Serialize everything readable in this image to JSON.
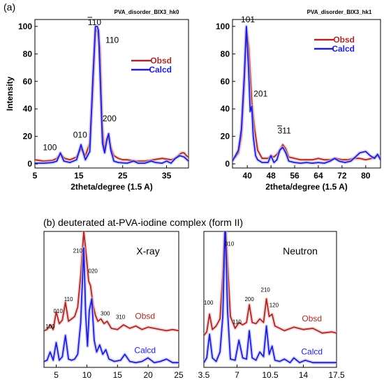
{
  "section_labels": {
    "a": "(a)",
    "b": "(b) deuterated at-PVA-iodine complex (form II)"
  },
  "colors": {
    "obsd": "#a52a2a",
    "calcd": "#1f1fd0",
    "obsd_halo": "#f4b8b8",
    "calcd_halo": "#b8b8f4"
  },
  "chart_data": [
    {
      "id": "hk0",
      "type": "line",
      "title": "PVA_disorder_BIX3_hk0",
      "xlabel": "2theta/degree (1.5 A)",
      "ylabel": "Intensity",
      "xlim": [
        5,
        40
      ],
      "ylim": [
        -3,
        105
      ],
      "xticks": [
        5,
        15,
        25,
        35
      ],
      "yticks": [
        0,
        20,
        40,
        60,
        80,
        100
      ],
      "legend": [
        "Obsd",
        "Calcd"
      ],
      "legend_position": "right",
      "peak_labels": [
        {
          "text": "100",
          "x": 8.4,
          "y": 10
        },
        {
          "text": "010",
          "x": 15.3,
          "y": 19
        },
        {
          "text": "110",
          "x": 18.6,
          "y": 101,
          "overbar_chars": 1
        },
        {
          "text": "110",
          "x": 22.6,
          "y": 88
        },
        {
          "text": "200",
          "x": 22.0,
          "y": 31
        }
      ],
      "series": [
        {
          "name": "Obsd",
          "x": [
            5,
            7,
            9,
            10,
            10.8,
            11.8,
            13,
            14.5,
            15.5,
            16.5,
            17.5,
            18.2,
            18.8,
            19.3,
            19.8,
            20.3,
            20.8,
            21.3,
            21.8,
            22.3,
            23,
            24,
            25,
            26,
            28,
            30,
            32,
            34,
            36,
            37,
            38,
            38.5,
            39,
            39.5,
            40
          ],
          "y": [
            3,
            2,
            2.5,
            4,
            7,
            4,
            3,
            5,
            11,
            6,
            15,
            55,
            98,
            96,
            85,
            30,
            10,
            16,
            19,
            12,
            6,
            4,
            3,
            3,
            2,
            2,
            3,
            4,
            3,
            4,
            7,
            8,
            8,
            6,
            5
          ]
        },
        {
          "name": "Calcd",
          "x": [
            5,
            7,
            9,
            10,
            10.8,
            11.6,
            13,
            14.5,
            15.5,
            16.5,
            17.5,
            18.2,
            18.8,
            19.2,
            19.5,
            19.9,
            20.4,
            20.9,
            21.4,
            21.8,
            22.3,
            23,
            24,
            26,
            27.5,
            28.5,
            30,
            31.5,
            32.5,
            34,
            35,
            36,
            37,
            38,
            39,
            40
          ],
          "y": [
            0.5,
            0.5,
            1,
            2,
            8,
            2,
            1,
            3,
            14,
            3,
            9,
            62,
            100,
            100,
            97,
            60,
            15,
            8,
            18,
            22,
            10,
            2,
            1,
            0.5,
            2,
            0.5,
            0.5,
            2,
            1,
            0.5,
            2,
            0.5,
            4,
            6,
            5,
            2
          ]
        }
      ]
    },
    {
      "id": "hk1",
      "type": "line",
      "title": "PVA_disorder_BIX3_hk1",
      "xlabel": "2theta/degree (1.5 A)",
      "ylabel": "",
      "xlim": [
        35,
        85
      ],
      "ylim": [
        -3,
        105
      ],
      "xticks": [
        40,
        48,
        56,
        64,
        72,
        80
      ],
      "yticks": [
        0,
        20,
        40,
        60,
        80,
        100
      ],
      "legend": [
        "Obsd",
        "Calcd"
      ],
      "legend_position": "top-right",
      "peak_labels": [
        {
          "text": "101",
          "x": 40.2,
          "y": 103
        },
        {
          "text": "201",
          "x": 44.5,
          "y": 49
        },
        {
          "text": "311",
          "x": 52.5,
          "y": 22,
          "overbar_chars": 1
        }
      ],
      "series": [
        {
          "name": "Obsd",
          "x": [
            35,
            36,
            37,
            38,
            39,
            39.7,
            40.5,
            41.5,
            42.5,
            43.5,
            45,
            47,
            48,
            49,
            50,
            51,
            52,
            53,
            54,
            56,
            58,
            60,
            62,
            64,
            66,
            68,
            70,
            72,
            74,
            76,
            78,
            80,
            82,
            84,
            85
          ],
          "y": [
            4,
            5,
            8,
            20,
            60,
            98,
            85,
            45,
            25,
            10,
            4,
            4,
            6,
            5,
            7,
            10,
            14,
            11,
            5,
            4,
            3,
            3,
            3,
            4,
            3,
            3,
            4,
            3,
            3,
            4,
            4,
            3,
            4,
            6,
            5
          ]
        },
        {
          "name": "Calcd",
          "x": [
            35,
            36,
            37,
            38,
            39,
            39.7,
            40.4,
            41,
            41.5,
            42,
            42.8,
            43.5,
            45,
            47,
            48,
            49,
            50,
            51,
            52,
            53,
            54,
            56,
            58,
            60,
            62,
            64,
            66,
            68,
            69.5,
            71,
            73,
            75,
            76.5,
            78,
            80,
            81.5,
            83,
            84,
            85
          ],
          "y": [
            2,
            6,
            10,
            25,
            65,
            100,
            70,
            38,
            42,
            20,
            6,
            3,
            1,
            1,
            6,
            1,
            3,
            10,
            12,
            8,
            2,
            1,
            0.5,
            1,
            0.5,
            1,
            0.5,
            2,
            4,
            2,
            1,
            2,
            5,
            8,
            9,
            6,
            4,
            7,
            3
          ]
        }
      ]
    },
    {
      "id": "xray",
      "type": "line",
      "title": "X-ray",
      "xlabel": "",
      "ylabel": "",
      "xlim": [
        3,
        25
      ],
      "ylim": [
        -3,
        112
      ],
      "xticks": [
        5,
        10,
        15,
        20,
        25
      ],
      "yticks": [],
      "series_labels": [
        {
          "text": "Obsd",
          "x": 19.5,
          "y": 38
        },
        {
          "text": "Calcd",
          "x": 19.5,
          "y": 9
        }
      ],
      "peak_labels": [
        {
          "text": "100",
          "x": 4.0,
          "y": 30
        },
        {
          "text": "010",
          "x": 5.3,
          "y": 43
        },
        {
          "text": "110",
          "x": 7.0,
          "y": 53
        },
        {
          "text": "210",
          "x": 8.5,
          "y": 94
        },
        {
          "text": "020",
          "x": 11.0,
          "y": 77
        },
        {
          "text": "300",
          "x": 13.0,
          "y": 41
        },
        {
          "text": "310",
          "x": 15.5,
          "y": 38
        }
      ],
      "series": [
        {
          "name": "Obsd",
          "x": [
            3,
            3.5,
            4,
            4.5,
            5,
            5.5,
            6,
            6.5,
            7,
            7.5,
            8,
            8.5,
            9,
            9.5,
            9.9,
            10.3,
            10.6,
            11,
            11.4,
            11.8,
            12.3,
            12.8,
            13.3,
            14,
            15,
            16,
            17,
            18,
            19,
            20,
            21,
            22,
            23,
            24,
            25
          ],
          "y": [
            28,
            29,
            33,
            29,
            44,
            34,
            37,
            52,
            36,
            38,
            40,
            48,
            75,
            112,
            92,
            70,
            66,
            50,
            41,
            36,
            38,
            34,
            36,
            30,
            29,
            33,
            30,
            32,
            29,
            31,
            30,
            29,
            28,
            29,
            28
          ]
        },
        {
          "name": "Calcd",
          "x": [
            3,
            3.5,
            4,
            4.5,
            5,
            5.5,
            6,
            6.5,
            7,
            7.5,
            8,
            8.5,
            9,
            9.5,
            9.8,
            10.1,
            10.4,
            10.8,
            11.2,
            11.6,
            12.1,
            12.6,
            13.1,
            13.6,
            14.5,
            15.5,
            16.2,
            17,
            18,
            19,
            20,
            21,
            22,
            23,
            24,
            25
          ],
          "y": [
            2,
            3,
            10,
            3,
            18,
            3,
            6,
            24,
            4,
            3,
            4,
            8,
            35,
            98,
            42,
            15,
            45,
            55,
            20,
            10,
            16,
            8,
            12,
            4,
            2,
            3,
            8,
            2,
            1,
            2,
            5,
            1,
            2,
            4,
            1,
            1
          ]
        }
      ]
    },
    {
      "id": "neutron",
      "type": "line",
      "title": "Neutron",
      "xlabel": "",
      "ylabel": "",
      "xlim": [
        3.5,
        17.5
      ],
      "ylim": [
        -3,
        112
      ],
      "xticks": [
        3.5,
        7.0,
        10.5,
        14.0,
        17.5
      ],
      "yticks": [],
      "series_labels": [
        {
          "text": "Obsd",
          "x": 14.9,
          "y": 36
        },
        {
          "text": "Calcd",
          "x": 14.9,
          "y": 8
        }
      ],
      "peak_labels": [
        {
          "text": "100",
          "x": 4.0,
          "y": 50
        },
        {
          "text": "010",
          "x": 6.2,
          "y": 100
        },
        {
          "text": "110",
          "x": 7.0,
          "y": 34
        },
        {
          "text": "200",
          "x": 8.3,
          "y": 53
        },
        {
          "text": "210",
          "x": 10.0,
          "y": 61
        },
        {
          "text": "120",
          "x": 10.9,
          "y": 48
        }
      ],
      "series": [
        {
          "name": "Obsd",
          "x": [
            3.5,
            3.8,
            4.1,
            4.4,
            4.8,
            5.2,
            5.5,
            5.75,
            6.0,
            6.3,
            6.8,
            7.2,
            7.6,
            8.0,
            8.3,
            8.6,
            9.0,
            9.4,
            9.8,
            10.1,
            10.4,
            10.7,
            11.0,
            11.5,
            12,
            13,
            14,
            15,
            16,
            17,
            17.5
          ],
          "y": [
            24,
            27,
            42,
            29,
            32,
            38,
            75,
            120,
            85,
            40,
            30,
            35,
            33,
            35,
            50,
            35,
            34,
            38,
            35,
            55,
            40,
            42,
            32,
            30,
            28,
            31,
            29,
            30,
            26,
            27,
            26
          ]
        },
        {
          "name": "Calcd",
          "x": [
            3.5,
            3.8,
            4.1,
            4.4,
            4.8,
            5.2,
            5.5,
            5.75,
            6.0,
            6.3,
            6.8,
            7.2,
            7.6,
            8.0,
            8.3,
            8.6,
            9.0,
            9.4,
            9.8,
            10.1,
            10.4,
            10.7,
            11.0,
            11.5,
            12,
            12.6,
            13,
            13.6,
            14.2,
            15,
            16,
            17,
            17.5
          ],
          "y": [
            1,
            5,
            25,
            5,
            2,
            10,
            40,
            120,
            45,
            4,
            3,
            20,
            5,
            4,
            28,
            5,
            3,
            10,
            6,
            32,
            8,
            15,
            3,
            2,
            4,
            1,
            5,
            1,
            3,
            1,
            1,
            1,
            1
          ]
        }
      ]
    }
  ]
}
